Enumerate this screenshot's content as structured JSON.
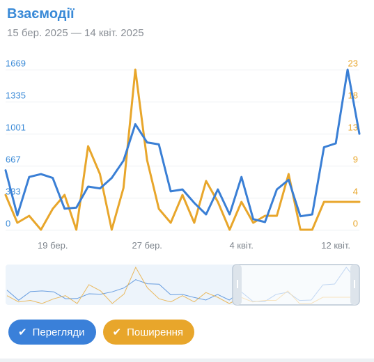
{
  "header": {
    "title": "Взаємодії",
    "subtitle": "15 бер. 2025 — 14 квіт. 2025"
  },
  "toggles": [
    {
      "label": "Перегляди",
      "check": "✔",
      "color": "#3a80d9"
    },
    {
      "label": "Поширення",
      "check": "✔",
      "color": "#e8a62b"
    }
  ],
  "chart_data": {
    "type": "line",
    "grid": true,
    "legend": "bottom-left toggle buttons",
    "x": [
      "15 бер.",
      "16 бер.",
      "17 бер.",
      "18 бер.",
      "19 бер.",
      "20 бер.",
      "21 бер.",
      "22 бер.",
      "23 бер.",
      "24 бер.",
      "25 бер.",
      "26 бер.",
      "27 бер.",
      "28 бер.",
      "29 бер.",
      "30 бер.",
      "31 бер.",
      "1 квіт.",
      "2 квіт.",
      "3 квіт.",
      "4 квіт.",
      "5 квіт.",
      "6 квіт.",
      "7 квіт.",
      "8 квіт.",
      "9 квіт.",
      "10 квіт.",
      "11 квіт.",
      "12 квіт.",
      "13 квіт.",
      "14 квіт."
    ],
    "x_ticks": [
      "19 бер.",
      "27 бер.",
      "4 квіт.",
      "12 квіт."
    ],
    "y_left": {
      "ticks": [
        "0",
        "333",
        "667",
        "1001",
        "1335",
        "1669"
      ],
      "range": [
        0,
        1669
      ]
    },
    "y_right": {
      "ticks": [
        "0",
        "4",
        "9",
        "13",
        "18",
        "23"
      ],
      "range": [
        0,
        23
      ]
    },
    "series": [
      {
        "name": "Перегляди",
        "axis": "left",
        "color": "#3a7fd5",
        "values": [
          620,
          150,
          550,
          580,
          540,
          220,
          230,
          450,
          430,
          540,
          720,
          1100,
          910,
          890,
          400,
          420,
          280,
          160,
          420,
          160,
          550,
          110,
          80,
          420,
          520,
          140,
          160,
          860,
          900,
          1669,
          1000
        ]
      },
      {
        "name": "Поширення",
        "axis": "right",
        "color": "#e8a62b",
        "values": [
          5,
          1,
          2,
          0,
          3,
          5,
          0,
          12,
          8,
          0,
          6,
          23,
          10,
          3,
          1,
          5,
          1,
          7,
          4,
          0,
          4,
          1,
          2,
          2,
          8,
          0,
          0,
          4,
          4,
          4,
          4
        ]
      }
    ]
  }
}
